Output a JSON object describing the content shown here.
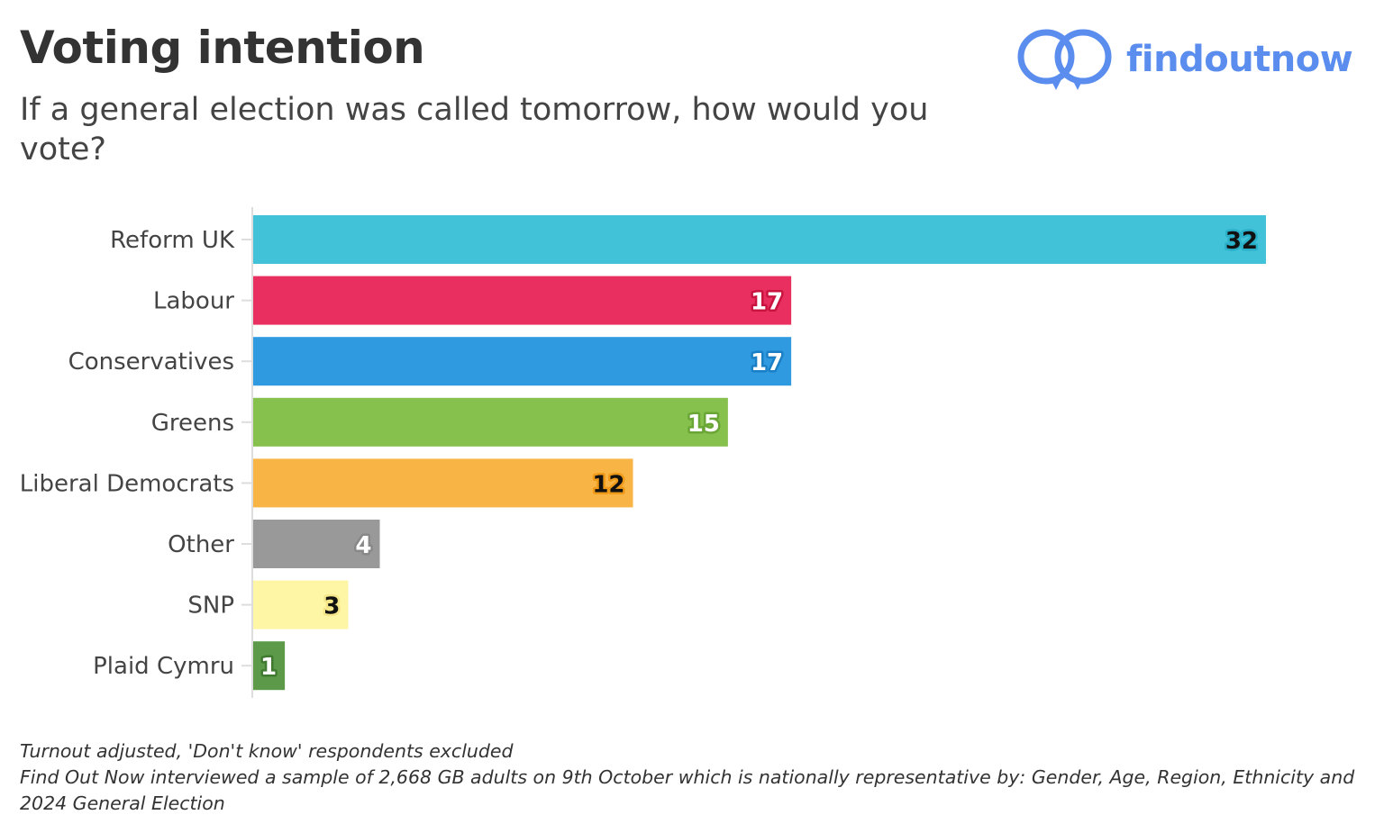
{
  "title": "Voting intention",
  "subtitle": "If a general election was called tomorrow, how would you vote?",
  "logo": {
    "text": "findoutnow",
    "color": "#5b8def"
  },
  "chart_data": {
    "type": "bar",
    "orientation": "horizontal",
    "title": "Voting intention",
    "subtitle": "If a general election was called tomorrow, how would you vote?",
    "categories": [
      "Reform UK",
      "Labour",
      "Conservatives",
      "Greens",
      "Liberal Democrats",
      "Other",
      "SNP",
      "Plaid Cymru"
    ],
    "values": [
      32,
      17,
      17,
      15,
      12,
      4,
      3,
      1
    ],
    "colors": [
      "#41c2d9",
      "#e82f5f",
      "#2f9ae0",
      "#86c04d",
      "#f8b444",
      "#999999",
      "#fef5a5",
      "#5c9a4a"
    ],
    "label_colors": [
      "#111111",
      "#ffffff",
      "#ffffff",
      "#ffffff",
      "#111111",
      "#ffffff",
      "#111111",
      "#ffffff"
    ],
    "halo_colors": [
      "#2ab0c8",
      "#c8143e",
      "#1a7fc4",
      "#6aa636",
      "#f09a1a",
      "#888888",
      "#f5e68a",
      "#3f7a30"
    ],
    "xlim": [
      0,
      32
    ],
    "grid": false,
    "xlabel": "",
    "ylabel": ""
  },
  "notes": [
    "Turnout adjusted, 'Don't know' respondents excluded",
    "Find Out Now interviewed a sample of 2,668 GB adults on 9th October which is nationally representative by: Gender, Age, Region, Ethnicity and 2024 General Election"
  ]
}
